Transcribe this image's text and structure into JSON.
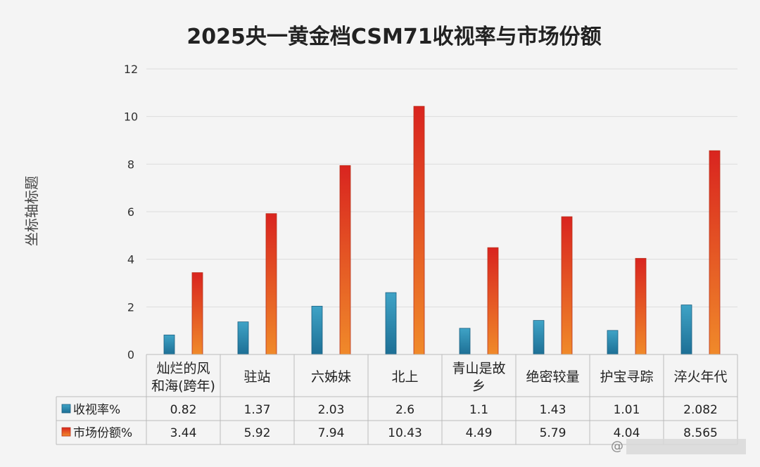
{
  "chart_data": {
    "type": "bar",
    "title": "2025央一黄金档CSM71收视率与市场份额",
    "ylabel": "坐标轴标题",
    "ylim": [
      0,
      12
    ],
    "yticks": [
      0,
      2,
      4,
      6,
      8,
      10,
      12
    ],
    "grid": true,
    "legend": "data-table-below",
    "categories": [
      [
        "灿烂的风",
        "和海(跨年)"
      ],
      [
        "驻站"
      ],
      [
        "六姊妹"
      ],
      [
        "北上"
      ],
      [
        "青山是故",
        "乡"
      ],
      [
        "绝密较量"
      ],
      [
        "护宝寻踪"
      ],
      [
        "淬火年代"
      ]
    ],
    "series": [
      {
        "name": "收视率%",
        "values": [
          0.82,
          1.37,
          2.03,
          2.6,
          1.1,
          1.43,
          1.01,
          2.082
        ],
        "color": "#2a86a8"
      },
      {
        "name": "市场份额%",
        "values": [
          3.44,
          5.92,
          7.94,
          10.43,
          4.49,
          5.79,
          4.04,
          8.565
        ],
        "color": "#e2452a"
      }
    ],
    "table_values": [
      [
        "0.82",
        "1.37",
        "2.03",
        "2.6",
        "1.1",
        "1.43",
        "1.01",
        "2.082"
      ],
      [
        "3.44",
        "5.92",
        "7.94",
        "10.43",
        "4.49",
        "5.79",
        "4.04",
        "8.565"
      ]
    ]
  },
  "watermark": "@"
}
